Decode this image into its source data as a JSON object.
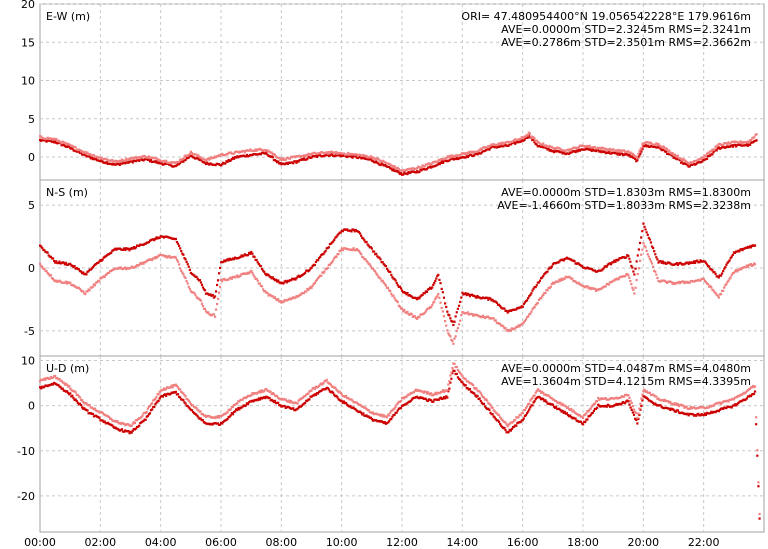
{
  "chart_data": [
    {
      "type": "scatter",
      "panel_label": "E-W (m)",
      "header_line": "ORI= 47.480954400°N  19.056542228°E 179.9616m",
      "stats": [
        "AVE=0.0000m STD=2.3245m RMS=2.3241m",
        "AVE=0.2786m STD=2.3501m RMS=2.3662m"
      ],
      "ylim": [
        -3,
        20
      ],
      "yticks": [
        20,
        15,
        10,
        5,
        0
      ],
      "grid": true,
      "series": [
        {
          "color": "#cc0000",
          "x": [
            0,
            0.5,
            1,
            1.5,
            2,
            2.5,
            3,
            3.5,
            4,
            4.5,
            5,
            5.5,
            6,
            6.5,
            7,
            7.5,
            8,
            8.5,
            9,
            9.5,
            10,
            10.5,
            11,
            11.5,
            12,
            12.5,
            13,
            13.5,
            14,
            14.5,
            15,
            15.5,
            16,
            16.2,
            16.5,
            17,
            17.5,
            18,
            18.5,
            19,
            19.5,
            19.8,
            20,
            20.5,
            21,
            21.5,
            22,
            22.5,
            23,
            23.5,
            23.75
          ],
          "y": [
            2.2,
            2,
            1.2,
            0.2,
            -0.5,
            -1,
            -0.6,
            -0.3,
            -0.8,
            -1.2,
            0.2,
            -0.8,
            -1,
            0,
            0.3,
            0.5,
            -1,
            -0.6,
            0,
            0.3,
            0.2,
            0,
            -0.4,
            -1.3,
            -2.2,
            -1.9,
            -1.2,
            -0.4,
            0,
            0.4,
            1.3,
            1.5,
            2.2,
            2.8,
            1.5,
            0.8,
            0.5,
            1.1,
            0.8,
            0.5,
            0.3,
            -0.5,
            1.5,
            1.3,
            0,
            -1.2,
            -0.5,
            1.2,
            1.5,
            1.6,
            2.2
          ]
        },
        {
          "color": "#f08080",
          "x": [
            0,
            0.5,
            1,
            1.5,
            2,
            2.5,
            3,
            3.5,
            4,
            4.5,
            5,
            5.5,
            6,
            6.5,
            7,
            7.5,
            8,
            8.5,
            9,
            9.5,
            10,
            10.5,
            11,
            11.5,
            12,
            12.5,
            13,
            13.5,
            14,
            14.5,
            15,
            15.5,
            16,
            16.2,
            16.5,
            17,
            17.5,
            18,
            18.5,
            19,
            19.5,
            19.8,
            20,
            20.5,
            21,
            21.5,
            22,
            22.5,
            23,
            23.5,
            23.75
          ],
          "y": [
            2.6,
            2.3,
            1.5,
            0.6,
            -0.1,
            -0.6,
            -0.2,
            0.1,
            -0.4,
            -0.8,
            0.6,
            -0.4,
            0.3,
            0.6,
            0.9,
            1,
            -0.3,
            0,
            0.4,
            0.6,
            0.5,
            0.3,
            0,
            -0.8,
            -1.8,
            -1.4,
            -0.8,
            0,
            0.4,
            0.8,
            1.6,
            1.9,
            2.5,
            3.1,
            1.9,
            1.2,
            0.9,
            1.5,
            1.2,
            0.9,
            0.7,
            0,
            1.9,
            1.7,
            0.4,
            -0.8,
            0,
            1.6,
            1.9,
            2,
            3
          ]
        }
      ]
    },
    {
      "type": "scatter",
      "panel_label": "N-S (m)",
      "stats": [
        "AVE=0.0000m STD=1.8303m RMS=1.8300m",
        "AVE=-1.4660m STD=1.8033m RMS=2.3238m"
      ],
      "ylim": [
        -7,
        7
      ],
      "yticks": [
        5,
        0,
        -5
      ],
      "grid": true,
      "series": [
        {
          "color": "#cc0000",
          "x": [
            0,
            0.5,
            1,
            1.5,
            2,
            2.5,
            3,
            3.5,
            4,
            4.5,
            5,
            5.3,
            5.5,
            5.8,
            6,
            6.5,
            7,
            7.5,
            8,
            8.5,
            9,
            9.5,
            10,
            10.5,
            11,
            11.5,
            12,
            12.5,
            13,
            13.2,
            13.5,
            13.7,
            14,
            14.5,
            15,
            15.5,
            16,
            16.5,
            17,
            17.5,
            18,
            18.5,
            19,
            19.5,
            19.7,
            20,
            20.5,
            21,
            21.5,
            22,
            22.5,
            23,
            23.5,
            23.7
          ],
          "y": [
            1.8,
            0.5,
            0.3,
            -0.5,
            0.6,
            1.5,
            1.5,
            2,
            2.5,
            2.3,
            -0.3,
            -1,
            -2,
            -2.3,
            0.5,
            0.8,
            1.2,
            -0.5,
            -1.2,
            -0.8,
            0,
            1.5,
            3,
            3,
            1.5,
            0,
            -1.8,
            -2.5,
            -1.5,
            -0.5,
            -3.5,
            -4.5,
            -2,
            -2.3,
            -2.5,
            -3.5,
            -3,
            -1.2,
            0.3,
            0.8,
            0.1,
            -0.3,
            0.5,
            1,
            -0.5,
            3.5,
            0.5,
            0.3,
            0.4,
            0.6,
            -0.8,
            1.2,
            1.7,
            1.8
          ]
        },
        {
          "color": "#f08080",
          "x": [
            0,
            0.5,
            1,
            1.5,
            2,
            2.5,
            3,
            3.5,
            4,
            4.5,
            5,
            5.3,
            5.5,
            5.8,
            6,
            6.5,
            7,
            7.5,
            8,
            8.5,
            9,
            9.5,
            10,
            10.5,
            11,
            11.5,
            12,
            12.5,
            13,
            13.2,
            13.5,
            13.7,
            14,
            14.5,
            15,
            15.5,
            16,
            16.5,
            17,
            17.5,
            18,
            18.5,
            19,
            19.5,
            19.7,
            20,
            20.5,
            21,
            21.5,
            22,
            22.5,
            23,
            23.5,
            23.7
          ],
          "y": [
            0.3,
            -1,
            -1.2,
            -2,
            -0.9,
            0,
            0,
            0.5,
            1,
            0.8,
            -1.8,
            -2.5,
            -3.5,
            -3.8,
            -1,
            -0.7,
            -0.3,
            -2,
            -2.7,
            -2.3,
            -1.5,
            0,
            1.5,
            1.5,
            0,
            -1.5,
            -3.3,
            -4,
            -3,
            -2,
            -5,
            -6,
            -3.5,
            -3.8,
            -4,
            -5,
            -4.5,
            -2.7,
            -1.2,
            -0.7,
            -1.4,
            -1.8,
            -1,
            -0.5,
            -2,
            2,
            -1,
            -1.2,
            -1.1,
            -0.9,
            -2.3,
            -0.3,
            0.2,
            0.3
          ]
        }
      ]
    },
    {
      "type": "scatter",
      "panel_label": "U-D (m)",
      "stats": [
        "AVE=0.0000m STD=4.0487m RMS=4.0480m",
        "AVE=1.3604m STD=4.1215m RMS=4.3395m"
      ],
      "ylim": [
        -28,
        11
      ],
      "yticks": [
        10,
        0,
        -10,
        -20
      ],
      "grid": true,
      "series": [
        {
          "color": "#cc0000",
          "x": [
            0,
            0.5,
            1,
            1.5,
            2,
            2.5,
            3,
            3.5,
            4,
            4.5,
            5,
            5.5,
            6,
            6.5,
            7,
            7.5,
            8,
            8.5,
            9,
            9.5,
            10,
            10.5,
            11,
            11.5,
            12,
            12.5,
            13,
            13.5,
            13.7,
            14,
            14.5,
            15,
            15.5,
            16,
            16.5,
            17,
            17.5,
            18,
            18.5,
            19,
            19.5,
            19.8,
            20,
            20.5,
            21,
            21.5,
            22,
            22.5,
            23,
            23.5,
            23.7,
            23.85
          ],
          "y": [
            4,
            5,
            2.5,
            -1,
            -3,
            -5,
            -6,
            -3,
            2,
            3,
            -1,
            -4,
            -4,
            -1,
            1,
            2,
            0,
            -1,
            2,
            4,
            1,
            -1,
            -3,
            -4,
            0,
            2,
            1,
            2,
            8,
            5,
            2,
            -2,
            -6,
            -3,
            2,
            0,
            -2,
            -4,
            0,
            0,
            1,
            -4,
            2,
            0,
            -1,
            -2,
            -2,
            -1,
            0,
            2,
            3,
            -25
          ]
        },
        {
          "color": "#f08080",
          "x": [
            0,
            0.5,
            1,
            1.5,
            2,
            2.5,
            3,
            3.5,
            4,
            4.5,
            5,
            5.5,
            6,
            6.5,
            7,
            7.5,
            8,
            8.5,
            9,
            9.5,
            10,
            10.5,
            11,
            11.5,
            12,
            12.5,
            13,
            13.5,
            13.7,
            14,
            14.5,
            15,
            15.5,
            16,
            16.5,
            17,
            17.5,
            18,
            18.5,
            19,
            19.5,
            19.8,
            20,
            20.5,
            21,
            21.5,
            22,
            22.5,
            23,
            23.5,
            23.7,
            23.85
          ],
          "y": [
            5.5,
            6.5,
            4,
            0.5,
            -1.5,
            -3.5,
            -4.5,
            -1.5,
            3.5,
            4.5,
            0.5,
            -2.5,
            -2.5,
            0.5,
            2.5,
            3.5,
            1.5,
            0.5,
            3.5,
            5.5,
            2.5,
            0.5,
            -1.5,
            -2.5,
            1.5,
            3.5,
            2.5,
            3.5,
            9.5,
            6.5,
            3.5,
            -0.5,
            -4.5,
            -1.5,
            3.5,
            1.5,
            -0.5,
            -2.5,
            1.5,
            1.5,
            2.5,
            -2.5,
            3.5,
            1.5,
            0.5,
            -0.5,
            -0.5,
            0.5,
            1.5,
            3.5,
            4.5,
            -24
          ]
        }
      ]
    }
  ],
  "xaxis": {
    "xlim": [
      0,
      24
    ],
    "ticks": [
      0,
      2,
      4,
      6,
      8,
      10,
      12,
      14,
      16,
      18,
      20,
      22
    ],
    "tick_labels": [
      "00:00",
      "02:00",
      "04:00",
      "06:00",
      "08:00",
      "10:00",
      "12:00",
      "14:00",
      "16:00",
      "18:00",
      "20:00",
      "22:00"
    ]
  }
}
